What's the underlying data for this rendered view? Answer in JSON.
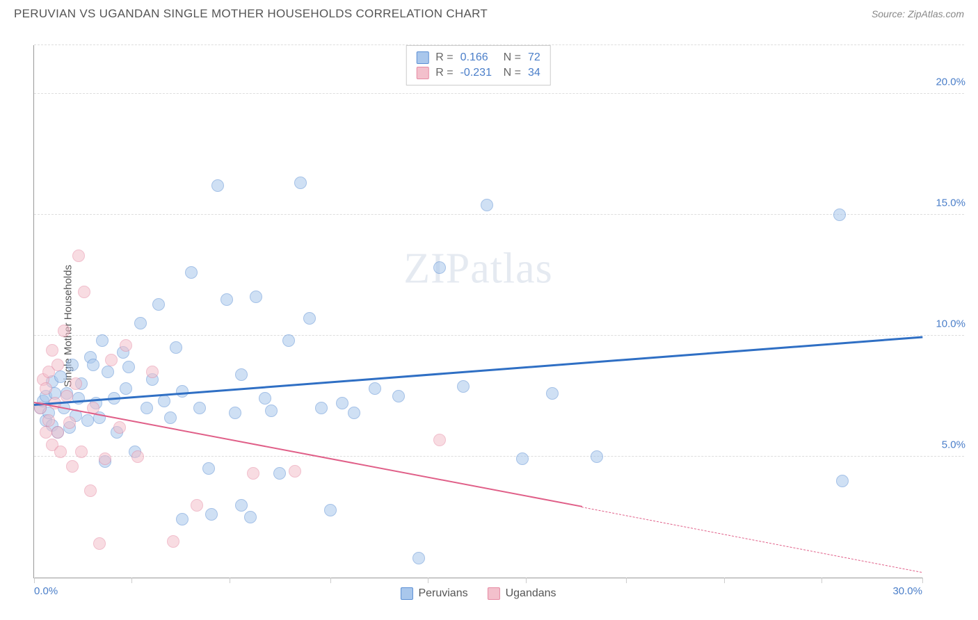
{
  "title": "PERUVIAN VS UGANDAN SINGLE MOTHER HOUSEHOLDS CORRELATION CHART",
  "source": "Source: ZipAtlas.com",
  "ylabel": "Single Mother Households",
  "watermark_a": "ZIP",
  "watermark_b": "atlas",
  "chart": {
    "type": "scatter",
    "background_color": "#ffffff",
    "grid_color": "#dddddd",
    "axis_color": "#999999",
    "xlim": [
      0,
      30
    ],
    "ylim": [
      0,
      22
    ],
    "x_ticks": [
      0,
      3.3,
      6.6,
      10,
      13.3,
      16.6,
      20,
      23.3,
      26.6,
      30
    ],
    "x_tick_labels": {
      "0": "0.0%",
      "30": "30.0%"
    },
    "y_ticks": [
      5,
      10,
      15,
      20
    ],
    "y_tick_labels": {
      "5": "5.0%",
      "10": "10.0%",
      "15": "15.0%",
      "20": "20.0%"
    },
    "point_radius": 9,
    "point_opacity": 0.55,
    "label_fontsize": 15,
    "label_color": "#4a7ec9",
    "series": [
      {
        "name": "Peruvians",
        "fill_color": "#a9c7ec",
        "border_color": "#5b8fd4",
        "trend_color": "#2f6fc4",
        "r_label": "R =",
        "r_value": "0.166",
        "n_label": "N =",
        "n_value": "72",
        "trend": {
          "x1": 0,
          "y1": 7.1,
          "x2": 30,
          "y2": 9.9,
          "line_width": 2.5
        },
        "points": [
          [
            0.2,
            7.0
          ],
          [
            0.3,
            7.3
          ],
          [
            0.4,
            6.5
          ],
          [
            0.4,
            7.5
          ],
          [
            0.5,
            6.8
          ],
          [
            0.6,
            8.1
          ],
          [
            0.6,
            6.3
          ],
          [
            0.7,
            7.6
          ],
          [
            0.8,
            6.0
          ],
          [
            0.9,
            8.3
          ],
          [
            1.0,
            7.0
          ],
          [
            1.1,
            7.6
          ],
          [
            1.2,
            6.2
          ],
          [
            1.3,
            8.8
          ],
          [
            1.4,
            6.7
          ],
          [
            1.5,
            7.4
          ],
          [
            1.6,
            8.0
          ],
          [
            1.8,
            6.5
          ],
          [
            1.9,
            9.1
          ],
          [
            2.0,
            8.8
          ],
          [
            2.1,
            7.2
          ],
          [
            2.2,
            6.6
          ],
          [
            2.3,
            9.8
          ],
          [
            2.4,
            4.8
          ],
          [
            2.5,
            8.5
          ],
          [
            2.7,
            7.4
          ],
          [
            2.8,
            6.0
          ],
          [
            3.0,
            9.3
          ],
          [
            3.1,
            7.8
          ],
          [
            3.2,
            8.7
          ],
          [
            3.4,
            5.2
          ],
          [
            3.6,
            10.5
          ],
          [
            3.8,
            7.0
          ],
          [
            4.0,
            8.2
          ],
          [
            4.2,
            11.3
          ],
          [
            4.4,
            7.3
          ],
          [
            4.6,
            6.6
          ],
          [
            4.8,
            9.5
          ],
          [
            5.0,
            7.7
          ],
          [
            5.3,
            12.6
          ],
          [
            5.6,
            7.0
          ],
          [
            5.9,
            4.5
          ],
          [
            6.2,
            16.2
          ],
          [
            6.5,
            11.5
          ],
          [
            6.8,
            6.8
          ],
          [
            7.0,
            8.4
          ],
          [
            7.3,
            2.5
          ],
          [
            7.5,
            11.6
          ],
          [
            7.8,
            7.4
          ],
          [
            8.0,
            6.9
          ],
          [
            8.3,
            4.3
          ],
          [
            8.6,
            9.8
          ],
          [
            9.0,
            16.3
          ],
          [
            9.3,
            10.7
          ],
          [
            9.7,
            7.0
          ],
          [
            10.0,
            2.8
          ],
          [
            10.4,
            7.2
          ],
          [
            10.8,
            6.8
          ],
          [
            11.5,
            7.8
          ],
          [
            12.3,
            7.5
          ],
          [
            13.0,
            0.8
          ],
          [
            13.7,
            12.8
          ],
          [
            14.5,
            7.9
          ],
          [
            15.3,
            15.4
          ],
          [
            16.5,
            4.9
          ],
          [
            17.5,
            7.6
          ],
          [
            19.0,
            5.0
          ],
          [
            27.2,
            15.0
          ],
          [
            27.3,
            4.0
          ],
          [
            5.0,
            2.4
          ],
          [
            6.0,
            2.6
          ],
          [
            7.0,
            3.0
          ]
        ]
      },
      {
        "name": "Ugandans",
        "fill_color": "#f3c0cc",
        "border_color": "#e68aa3",
        "trend_color": "#e05f88",
        "r_label": "R =",
        "r_value": "-0.231",
        "n_label": "N =",
        "n_value": "34",
        "trend": {
          "x1": 0,
          "y1": 7.2,
          "x2": 18.5,
          "y2": 2.9,
          "line_width": 2.2,
          "dash_from_x": 18.5,
          "dash_to_x": 30,
          "dash_to_y": 0.2
        },
        "points": [
          [
            0.2,
            7.0
          ],
          [
            0.3,
            8.2
          ],
          [
            0.4,
            6.0
          ],
          [
            0.4,
            7.8
          ],
          [
            0.5,
            6.5
          ],
          [
            0.5,
            8.5
          ],
          [
            0.6,
            5.5
          ],
          [
            0.6,
            9.4
          ],
          [
            0.7,
            7.2
          ],
          [
            0.8,
            6.0
          ],
          [
            0.8,
            8.8
          ],
          [
            0.9,
            5.2
          ],
          [
            1.0,
            10.2
          ],
          [
            1.1,
            7.5
          ],
          [
            1.2,
            6.4
          ],
          [
            1.3,
            4.6
          ],
          [
            1.4,
            8.0
          ],
          [
            1.5,
            13.3
          ],
          [
            1.6,
            5.2
          ],
          [
            1.7,
            11.8
          ],
          [
            1.9,
            3.6
          ],
          [
            2.0,
            7.0
          ],
          [
            2.2,
            1.4
          ],
          [
            2.4,
            4.9
          ],
          [
            2.6,
            9.0
          ],
          [
            2.9,
            6.2
          ],
          [
            3.1,
            9.6
          ],
          [
            3.5,
            5.0
          ],
          [
            4.0,
            8.5
          ],
          [
            4.7,
            1.5
          ],
          [
            5.5,
            3.0
          ],
          [
            7.4,
            4.3
          ],
          [
            8.8,
            4.4
          ],
          [
            13.7,
            5.7
          ]
        ]
      }
    ]
  }
}
